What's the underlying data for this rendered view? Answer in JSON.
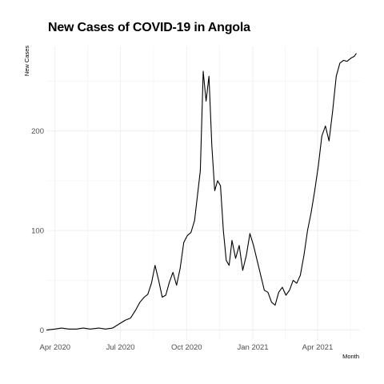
{
  "chart_data": {
    "type": "line",
    "title": "New Cases of COVID-19 in Angola",
    "xlabel": "Month",
    "ylabel": "New Cases",
    "x_ticks": [
      "Apr 2020",
      "Jul 2020",
      "Oct 2020",
      "Jan 2021",
      "Apr 2021"
    ],
    "x_tick_dates": [
      "2020-04-01",
      "2020-07-01",
      "2020-10-01",
      "2021-01-01",
      "2021-04-01"
    ],
    "y_ticks": [
      0,
      100,
      200
    ],
    "xlim": [
      "2020-03-20",
      "2021-05-30"
    ],
    "ylim": [
      -10,
      285
    ],
    "grid": true,
    "legend": "none",
    "line_color": "#000000",
    "series": [
      {
        "x": [
          "2020-03-20",
          "2020-04-01",
          "2020-04-10",
          "2020-04-20",
          "2020-05-01",
          "2020-05-10",
          "2020-05-20",
          "2020-06-01",
          "2020-06-10",
          "2020-06-20",
          "2020-07-01",
          "2020-07-08",
          "2020-07-15",
          "2020-07-22",
          "2020-07-28",
          "2020-08-03",
          "2020-08-08",
          "2020-08-13",
          "2020-08-18",
          "2020-08-23",
          "2020-08-28",
          "2020-09-02",
          "2020-09-07",
          "2020-09-12",
          "2020-09-17",
          "2020-09-22",
          "2020-09-27",
          "2020-10-02",
          "2020-10-07",
          "2020-10-12",
          "2020-10-16",
          "2020-10-20",
          "2020-10-24",
          "2020-10-28",
          "2020-11-01",
          "2020-11-05",
          "2020-11-09",
          "2020-11-13",
          "2020-11-17",
          "2020-11-21",
          "2020-11-25",
          "2020-11-29",
          "2020-12-03",
          "2020-12-08",
          "2020-12-13",
          "2020-12-18",
          "2020-12-23",
          "2020-12-28",
          "2021-01-02",
          "2021-01-07",
          "2021-01-12",
          "2021-01-17",
          "2021-01-22",
          "2021-01-27",
          "2021-02-01",
          "2021-02-06",
          "2021-02-11",
          "2021-02-16",
          "2021-02-21",
          "2021-02-26",
          "2021-03-03",
          "2021-03-08",
          "2021-03-13",
          "2021-03-18",
          "2021-03-23",
          "2021-03-28",
          "2021-04-02",
          "2021-04-07",
          "2021-04-12",
          "2021-04-17",
          "2021-04-22",
          "2021-04-27",
          "2021-05-02",
          "2021-05-07",
          "2021-05-12",
          "2021-05-17",
          "2021-05-22",
          "2021-05-25"
        ],
        "y": [
          0,
          1,
          2,
          1,
          1,
          2,
          1,
          2,
          1,
          2,
          7,
          10,
          12,
          20,
          28,
          33,
          36,
          47,
          65,
          50,
          33,
          35,
          48,
          58,
          45,
          62,
          88,
          95,
          98,
          110,
          135,
          160,
          260,
          230,
          255,
          185,
          140,
          150,
          145,
          100,
          70,
          65,
          90,
          72,
          85,
          60,
          75,
          97,
          85,
          70,
          55,
          40,
          38,
          28,
          25,
          38,
          43,
          35,
          40,
          50,
          47,
          55,
          75,
          100,
          118,
          140,
          165,
          195,
          205,
          190,
          220,
          255,
          268,
          271,
          270,
          273,
          275,
          278
        ]
      }
    ]
  }
}
